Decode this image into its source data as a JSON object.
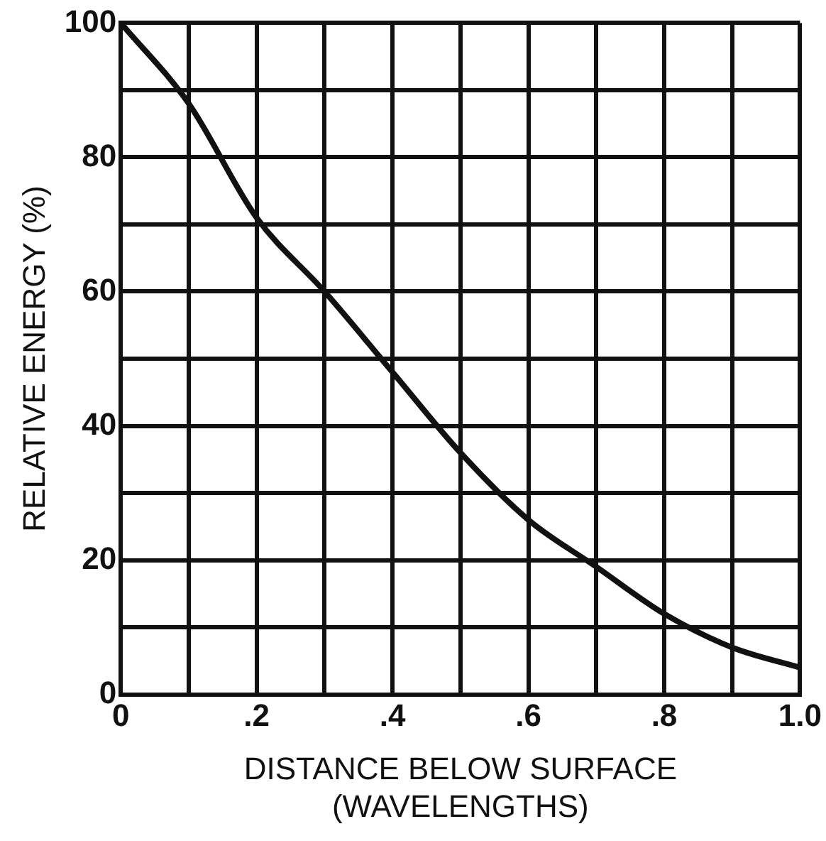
{
  "chart_data": {
    "type": "line",
    "xlabel": "DISTANCE BELOW SURFACE\n(WAVELENGTHS)",
    "ylabel": "RELATIVE ENERGY (%)",
    "x": [
      0,
      0.1,
      0.2,
      0.3,
      0.4,
      0.5,
      0.6,
      0.7,
      0.8,
      0.9,
      1.0
    ],
    "series": [
      {
        "color": "#111111",
        "values": [
          100,
          88,
          71,
          60,
          48,
          36,
          26,
          19,
          12,
          7,
          4
        ]
      }
    ],
    "xlim": [
      0,
      1.0
    ],
    "ylim": [
      0,
      100
    ],
    "xticks": [
      {
        "value": 0,
        "label": "0"
      },
      {
        "value": 0.1,
        "label": null
      },
      {
        "value": 0.2,
        "label": ".2"
      },
      {
        "value": 0.3,
        "label": null
      },
      {
        "value": 0.4,
        "label": ".4"
      },
      {
        "value": 0.5,
        "label": null
      },
      {
        "value": 0.6,
        "label": ".6"
      },
      {
        "value": 0.7,
        "label": null
      },
      {
        "value": 0.8,
        "label": ".8"
      },
      {
        "value": 0.9,
        "label": null
      },
      {
        "value": 1.0,
        "label": "1.0"
      }
    ],
    "yticks": [
      0,
      {
        "value": 10,
        "label": null
      },
      20,
      {
        "value": 30,
        "label": null
      },
      40,
      {
        "value": 50,
        "label": null
      },
      60,
      {
        "value": 70,
        "label": null
      },
      80,
      {
        "value": 90,
        "label": null
      },
      100
    ],
    "grid": true,
    "legend": false,
    "marker": "none",
    "line_style": "solid"
  }
}
